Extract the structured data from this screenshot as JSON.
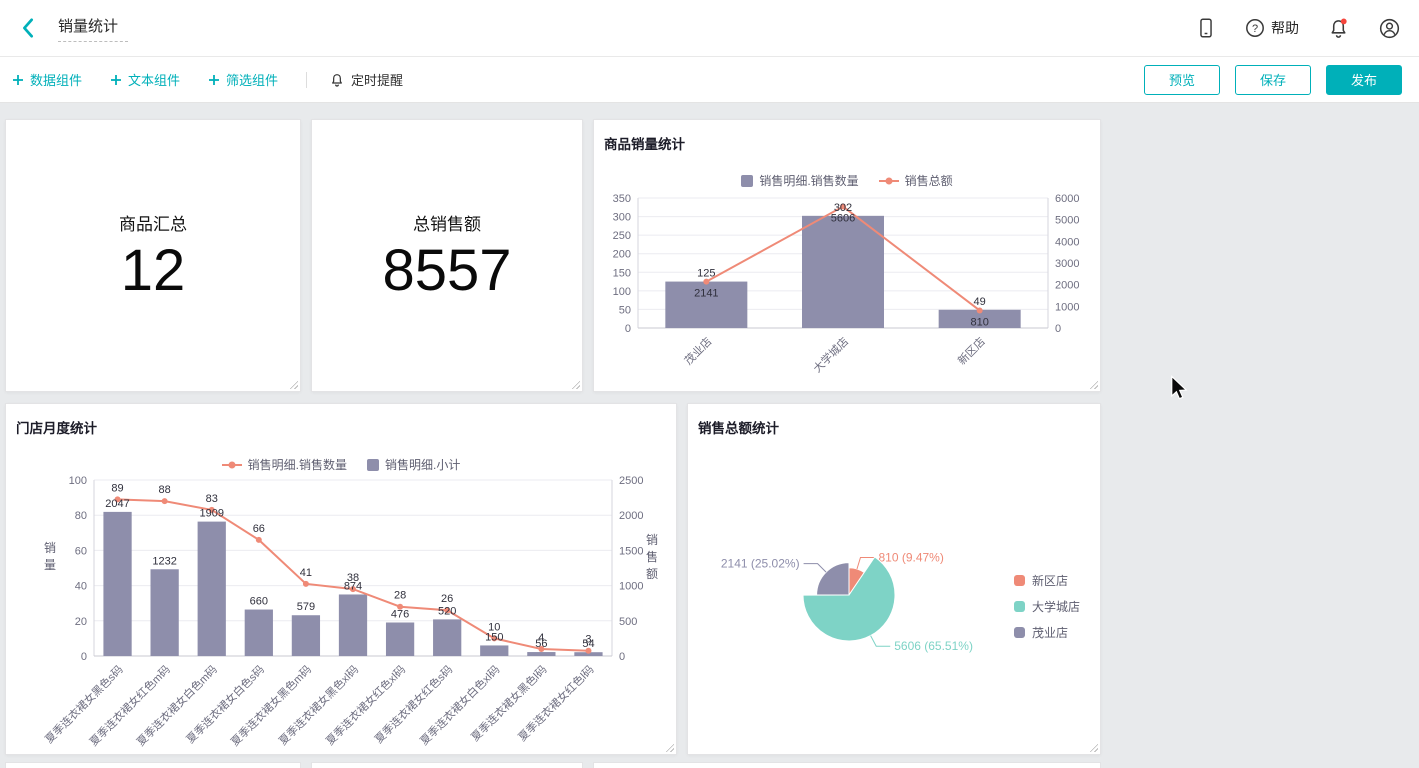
{
  "colors": {
    "accent": "#00b0b9",
    "bar": "#8e8eab",
    "line": "#ef8a77",
    "pie_teal": "#7ed3c6",
    "notification_dot": "#f5463d",
    "canvas_bg": "#e8eaec"
  },
  "icons": {
    "back": "chevron-left",
    "device_preview": "tablet",
    "help": "question-circle",
    "notifications": "bell-with-red-dot",
    "account": "user-circle",
    "add": "plus",
    "reminder": "alarm-bell",
    "resize": "corner-grip",
    "cursor": "mouse-pointer"
  },
  "header": {
    "title": "销量统计",
    "help_label": "帮助"
  },
  "toolbar": {
    "add_data_widget": "数据组件",
    "add_text_widget": "文本组件",
    "add_filter_widget": "筛选组件",
    "timed_reminder": "定时提醒",
    "preview_button": "预览",
    "save_button": "保存",
    "publish_button": "发布"
  },
  "stat_cards": [
    {
      "title": "商品汇总",
      "value": "12"
    },
    {
      "title": "总销售额",
      "value": "8557"
    }
  ],
  "chart_data": [
    {
      "id": "product-sales-stats",
      "type": "bar",
      "title": "商品销量统计",
      "categories": [
        "茂业店",
        "大学城店",
        "新区店"
      ],
      "series": [
        {
          "name": "销售明细.销售数量",
          "type": "bar",
          "axis": "left",
          "values": [
            125,
            302,
            49
          ],
          "color": "#8e8eab"
        },
        {
          "name": "销售总额",
          "type": "line",
          "axis": "right",
          "values": [
            2141,
            5606,
            810
          ],
          "color": "#ef8a77"
        }
      ],
      "left_axis": {
        "name": "",
        "min": 0,
        "max": 350,
        "ticks": [
          0,
          50,
          100,
          150,
          200,
          250,
          300,
          350
        ]
      },
      "right_axis": {
        "name": "",
        "min": 0,
        "max": 6000,
        "ticks": [
          0,
          1000,
          2000,
          3000,
          4000,
          5000,
          6000
        ]
      },
      "legend_position": "top",
      "grid": true
    },
    {
      "id": "store-monthly-stats",
      "type": "bar",
      "title": "门店月度统计",
      "categories": [
        "夏季连衣裙女黑色s码",
        "夏季连衣裙女红色m码",
        "夏季连衣裙女白色m码",
        "夏季连衣裙女白色s码",
        "夏季连衣裙女黑色m码",
        "夏季连衣裙女黑色xl码",
        "夏季连衣裙女红色xl码",
        "夏季连衣裙女红色s码",
        "夏季连衣裙女白色xl码",
        "夏季连衣裙女黑色l码",
        "夏季连衣裙女红色l码"
      ],
      "series": [
        {
          "name": "销售明细.销售数量",
          "type": "line",
          "axis": "left",
          "values": [
            89,
            88,
            83,
            66,
            41,
            38,
            28,
            26,
            10,
            4,
            3
          ],
          "color": "#ef8a77"
        },
        {
          "name": "销售明细.小计",
          "type": "bar",
          "axis": "right",
          "values": [
            2047,
            1232,
            1909,
            660,
            579,
            874,
            476,
            520,
            150,
            56,
            54
          ],
          "color": "#8e8eab"
        }
      ],
      "left_axis": {
        "name": "销\n量",
        "min": 0,
        "max": 100,
        "ticks": [
          0,
          20,
          40,
          60,
          80,
          100
        ]
      },
      "right_axis": {
        "name": "销\n售\n额",
        "min": 0,
        "max": 2500,
        "ticks": [
          0,
          500,
          1000,
          1500,
          2000,
          2500
        ]
      },
      "legend_position": "top",
      "grid": true
    },
    {
      "id": "sales-total-pie",
      "type": "pie",
      "title": "销售总额统计",
      "rose": true,
      "legend_position": "right",
      "slices": [
        {
          "name": "新区店",
          "value": 810,
          "pct": "9.47%",
          "label": "810 (9.47%)",
          "color": "#ef8a77"
        },
        {
          "name": "大学城店",
          "value": 5606,
          "pct": "65.51%",
          "label": "5606 (65.51%)",
          "color": "#7ed3c6"
        },
        {
          "name": "茂业店",
          "value": 2141,
          "pct": "25.02%",
          "label": "2141 (25.02%)",
          "color": "#8e8eab"
        }
      ]
    }
  ]
}
